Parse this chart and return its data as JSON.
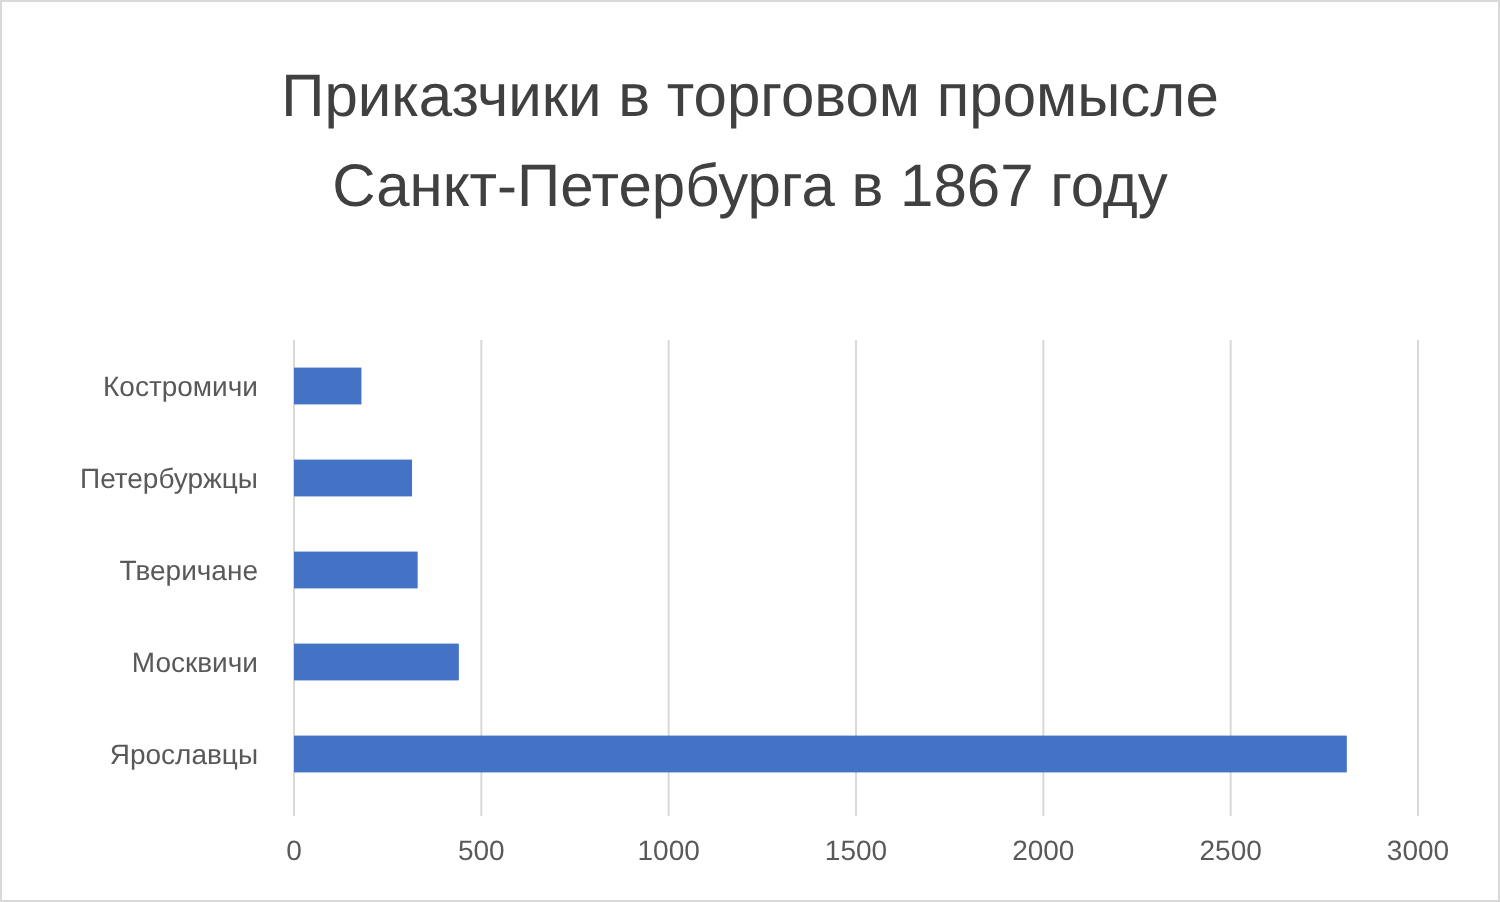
{
  "chart_data": {
    "type": "bar",
    "orientation": "horizontal",
    "title": "Приказчики в торговом промысле Санкт-Петербурга в 1867 году",
    "categories": [
      "Костромичи",
      "Петербуржцы",
      "Тверичане",
      "Москвичи",
      "Ярославцы"
    ],
    "values": [
      180,
      315,
      330,
      440,
      2810
    ],
    "color": "#4472c4",
    "xlim": [
      0,
      3000
    ],
    "xticks": [
      0,
      500,
      1000,
      1500,
      2000,
      2500,
      3000
    ],
    "grid": "x"
  }
}
